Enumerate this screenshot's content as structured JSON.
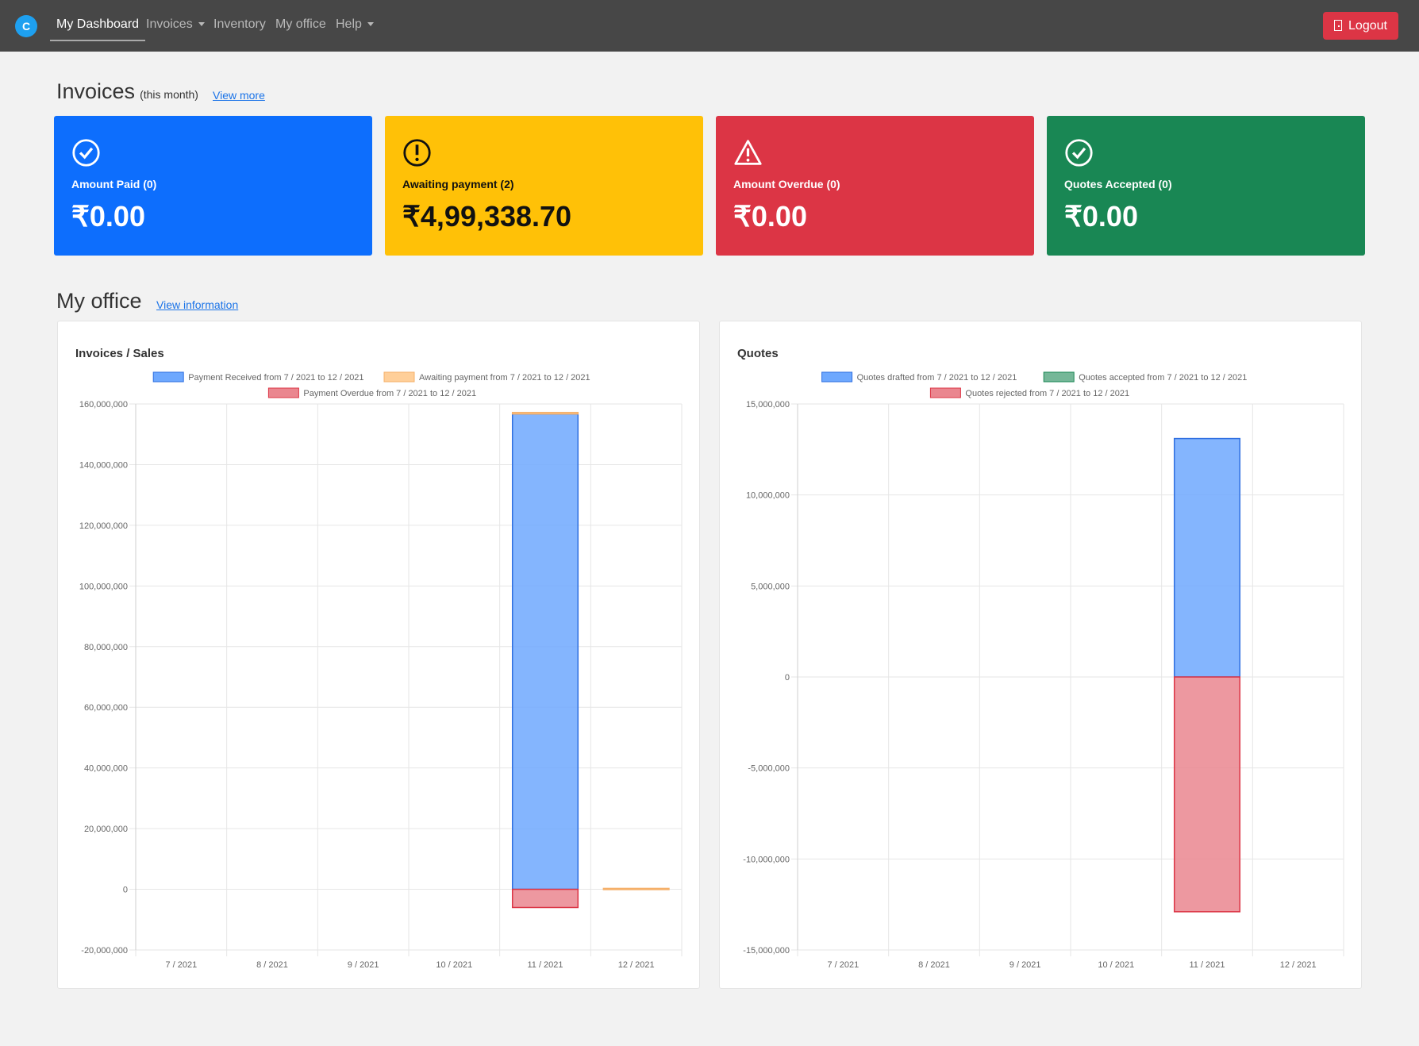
{
  "nav": {
    "logo": "C",
    "items": [
      {
        "label": "My Dashboard"
      },
      {
        "label": "Invoices"
      },
      {
        "label": "Inventory"
      },
      {
        "label": "My office"
      },
      {
        "label": "Help"
      }
    ],
    "logout": "Logout"
  },
  "invoices": {
    "title": "Invoices",
    "subtitle": "(this month)",
    "link": "View more",
    "cards": [
      {
        "label": "Amount Paid (0)",
        "value": "₹0.00",
        "icon": "check-circle-icon",
        "color": "#0d6efd"
      },
      {
        "label": "Awaiting payment (2)",
        "value": "₹4,99,338.70",
        "icon": "exclamation-circle-icon",
        "color": "#ffc107"
      },
      {
        "label": "Amount Overdue (0)",
        "value": "₹0.00",
        "icon": "warning-triangle-icon",
        "color": "#dc3545"
      },
      {
        "label": "Quotes Accepted (0)",
        "value": "₹0.00",
        "icon": "check-circle-icon",
        "color": "#198754"
      }
    ]
  },
  "office": {
    "title": "My office",
    "link": "View information"
  },
  "chart_data": [
    {
      "type": "bar",
      "stacked": true,
      "title": "Invoices / Sales",
      "categories": [
        "7 / 2021",
        "8 / 2021",
        "9 / 2021",
        "10 / 2021",
        "11 / 2021",
        "12 / 2021"
      ],
      "ylim": [
        -20000000,
        160000000
      ],
      "ystep": 20000000,
      "yticks": [
        "160,000,000",
        "140,000,000",
        "120,000,000",
        "100,000,000",
        "80,000,000",
        "60,000,000",
        "40,000,000",
        "20,000,000",
        "0",
        "-20,000,000"
      ],
      "series": [
        {
          "name": "Payment Received from 7 / 2021 to 12 / 2021",
          "color": "#6ea8fe",
          "border": "#2f6fe0",
          "values": [
            0,
            0,
            0,
            0,
            156700000,
            0
          ]
        },
        {
          "name": "Awaiting payment from 7 / 2021 to 12 / 2021",
          "color": "#ffcf99",
          "border": "#f5b06a",
          "values": [
            0,
            0,
            0,
            0,
            500000,
            300000
          ]
        },
        {
          "name": "Payment Overdue from 7 / 2021 to 12 / 2021",
          "color": "#ea868f",
          "border": "#dc3545",
          "values": [
            0,
            0,
            0,
            0,
            -6000000,
            0
          ]
        }
      ]
    },
    {
      "type": "bar",
      "stacked": true,
      "title": "Quotes",
      "categories": [
        "7 / 2021",
        "8 / 2021",
        "9 / 2021",
        "10 / 2021",
        "11 / 2021",
        "12 / 2021"
      ],
      "ylim": [
        -15000000,
        15000000
      ],
      "ystep": 5000000,
      "yticks": [
        "15,000,000",
        "10,000,000",
        "5,000,000",
        "0",
        "-5,000,000",
        "-10,000,000",
        "-15,000,000"
      ],
      "series": [
        {
          "name": "Quotes drafted from 7 / 2021 to 12 / 2021",
          "color": "#6ea8fe",
          "border": "#2f6fe0",
          "values": [
            0,
            0,
            0,
            0,
            13100000,
            0
          ]
        },
        {
          "name": "Quotes accepted from 7 / 2021 to 12 / 2021",
          "color": "#75b798",
          "border": "#198754",
          "values": [
            0,
            0,
            0,
            0,
            0,
            0
          ]
        },
        {
          "name": "Quotes rejected from 7 / 2021 to 12 / 2021",
          "color": "#ea868f",
          "border": "#dc3545",
          "values": [
            0,
            0,
            0,
            0,
            -12900000,
            0
          ]
        }
      ]
    }
  ]
}
